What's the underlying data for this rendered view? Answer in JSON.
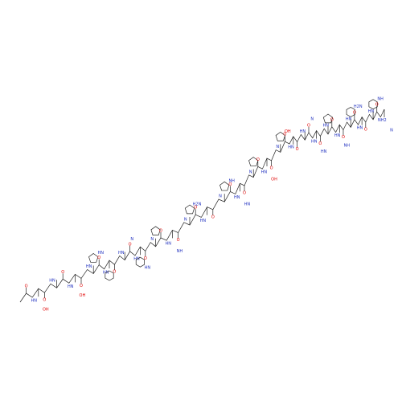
{
  "molecule": {
    "residues": [
      {
        "carbonyl": "O",
        "amide": "HN"
      },
      {
        "carbonyl": "O",
        "amide": "HN"
      },
      {
        "carbonyl": "O",
        "amide": "HN"
      },
      {
        "carbonyl": "O",
        "amide": "HN"
      },
      {
        "carbonyl": "O",
        "amide": "HN"
      },
      {
        "carbonyl": "O",
        "amide": "HN"
      },
      {
        "carbonyl": "O",
        "amide": "HN"
      },
      {
        "carbonyl": "O",
        "amide": "N"
      },
      {
        "carbonyl": "O",
        "amide": "HN"
      },
      {
        "carbonyl": "O",
        "amide": "N"
      },
      {
        "carbonyl": "O",
        "amide": "HN"
      },
      {
        "carbonyl": "O",
        "amide": "N"
      },
      {
        "carbonyl": "O",
        "amide": "HN"
      },
      {
        "carbonyl": "O",
        "amide": "N"
      },
      {
        "carbonyl": "O",
        "amide": "HN"
      },
      {
        "carbonyl": "O",
        "amide": "N"
      },
      {
        "carbonyl": "O",
        "amide": "HN"
      },
      {
        "carbonyl": "O",
        "amide": "HN"
      },
      {
        "carbonyl": "O",
        "amide": "HN"
      },
      {
        "carbonyl": "O",
        "amide": "HN"
      },
      {
        "carbonyl": "O",
        "amide": "HN"
      },
      {
        "carbonyl": "O",
        "amide": "HN"
      },
      {
        "carbonyl": "O",
        "amide": "HN"
      },
      {
        "carbonyl": "O",
        "amide": "HN"
      },
      {
        "carbonyl": "O",
        "amide": "NH2"
      }
    ],
    "side_labels": [
      "OH",
      "OH",
      "HN",
      "N",
      "HN",
      "NH",
      "H2N",
      "NH",
      "HN",
      "OH",
      "OH",
      "N",
      "HN",
      "NH",
      "H2N",
      "NH",
      "N"
    ]
  }
}
